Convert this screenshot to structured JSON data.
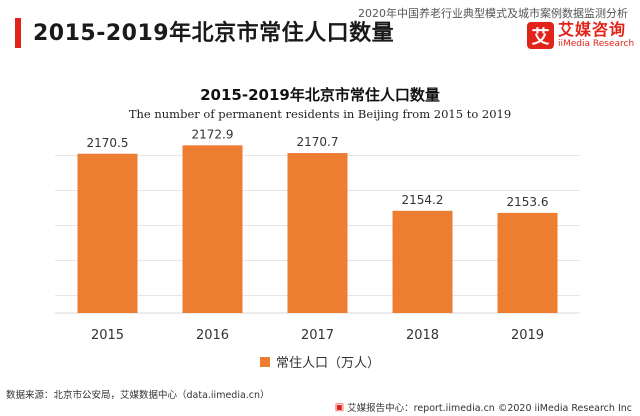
{
  "header": {
    "title": "2015-2019年北京市常住人口数量",
    "subtitle": "2020年中国养老行业典型模式及城市案例数据监测分析"
  },
  "logo": {
    "mark": "艾",
    "name_cn": "艾媒咨询",
    "name_en": "iiMedia Research"
  },
  "colors": {
    "accent": "#e2231a",
    "bar": "#ed7d31",
    "grid": "#e6e6e6"
  },
  "chart_data": {
    "type": "bar",
    "title": "2015-2019年北京市常住人口数量",
    "subtitle": "The number of permanent residents in Beijing from 2015 to 2019",
    "categories": [
      "2015",
      "2016",
      "2017",
      "2018",
      "2019"
    ],
    "series": [
      {
        "name": "常住人口（万人）",
        "values": [
          2170.5,
          2172.9,
          2170.7,
          2154.2,
          2153.6
        ]
      }
    ],
    "data_labels": [
      "2170.5",
      "2172.9",
      "2170.7",
      "2154.2",
      "2153.6"
    ],
    "xlabel": "",
    "ylabel": "",
    "ylim": [
      2125,
      2175
    ],
    "grid": true,
    "legend_position": "bottom"
  },
  "footer": {
    "source": "数据来源：北京市公安局，艾媒数据中心（data.iimedia.cn）",
    "copyright": "艾媒报告中心：report.iimedia.cn  ©2020  iiMedia Research  Inc"
  }
}
